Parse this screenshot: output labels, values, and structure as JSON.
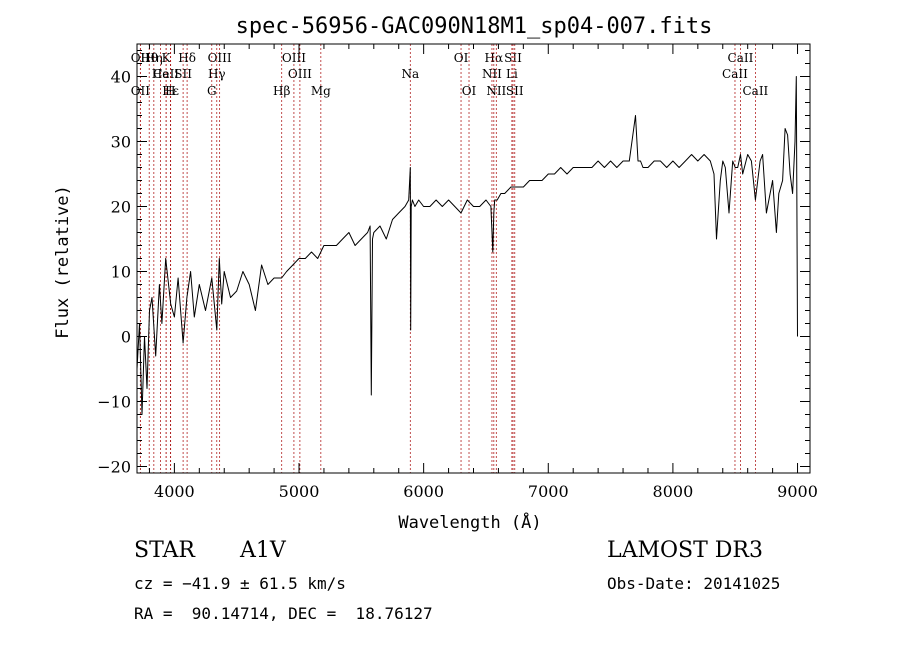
{
  "chart_data": {
    "type": "line",
    "title": "spec-56956-GAC090N18M1_sp04-007.fits",
    "xlabel": "Wavelength (Å)",
    "ylabel": "Flux (relative)",
    "xlim": [
      3700,
      9100
    ],
    "ylim": [
      -21,
      45
    ],
    "xticks": [
      4000,
      5000,
      6000,
      7000,
      8000,
      9000
    ],
    "xtick_labels": [
      "4000",
      "5000",
      "6000",
      "7000",
      "8000",
      "9000"
    ],
    "yticks": [
      -20,
      -10,
      0,
      10,
      20,
      30,
      40
    ],
    "ytick_labels": [
      "−20",
      "−10",
      "0",
      "10",
      "20",
      "30",
      "40"
    ],
    "series": [
      {
        "name": "spectrum",
        "x": [
          3700,
          3720,
          3740,
          3760,
          3780,
          3800,
          3820,
          3850,
          3880,
          3900,
          3930,
          3970,
          4000,
          4030,
          4070,
          4100,
          4130,
          4160,
          4200,
          4250,
          4300,
          4340,
          4360,
          4380,
          4400,
          4450,
          4500,
          4550,
          4600,
          4650,
          4700,
          4750,
          4800,
          4860,
          4900,
          4950,
          5000,
          5050,
          5100,
          5150,
          5200,
          5250,
          5300,
          5350,
          5400,
          5450,
          5500,
          5550,
          5570,
          5580,
          5590,
          5600,
          5650,
          5700,
          5750,
          5800,
          5850,
          5880,
          5893,
          5896,
          5900,
          5910,
          5930,
          5960,
          6000,
          6050,
          6100,
          6150,
          6200,
          6250,
          6300,
          6350,
          6400,
          6450,
          6500,
          6540,
          6555,
          6563,
          6570,
          6590,
          6620,
          6650,
          6700,
          6750,
          6800,
          6850,
          6900,
          6950,
          7000,
          7050,
          7100,
          7150,
          7200,
          7250,
          7300,
          7350,
          7400,
          7450,
          7500,
          7550,
          7600,
          7650,
          7700,
          7720,
          7740,
          7760,
          7800,
          7850,
          7900,
          7950,
          8000,
          8050,
          8100,
          8150,
          8200,
          8250,
          8300,
          8330,
          8350,
          8380,
          8400,
          8420,
          8450,
          8480,
          8500,
          8520,
          8542,
          8560,
          8600,
          8630,
          8662,
          8700,
          8720,
          8750,
          8780,
          8800,
          8830,
          8850,
          8880,
          8900,
          8920,
          8940,
          8960,
          8980,
          8990,
          9000
        ],
        "y": [
          -5,
          2,
          -12,
          0,
          -8,
          4,
          6,
          -3,
          8,
          2,
          12,
          5,
          3,
          9,
          -1,
          6,
          10,
          3,
          8,
          4,
          9,
          1,
          12,
          5,
          10,
          6,
          7,
          10,
          8,
          4,
          11,
          8,
          9,
          9,
          10,
          11,
          12,
          12,
          13,
          12,
          14,
          14,
          14,
          15,
          16,
          14,
          15,
          16,
          17,
          -9,
          15,
          16,
          17,
          15,
          18,
          19,
          20,
          21,
          26,
          1,
          20,
          21,
          20,
          21,
          20,
          20,
          21,
          20,
          21,
          20,
          19,
          21,
          20,
          20,
          21,
          20,
          13,
          19,
          21,
          21,
          22,
          22,
          23,
          23,
          23,
          24,
          24,
          24,
          25,
          25,
          26,
          25,
          26,
          26,
          26,
          26,
          27,
          26,
          27,
          26,
          27,
          27,
          34,
          27,
          27,
          26,
          26,
          27,
          27,
          26,
          27,
          26,
          27,
          28,
          27,
          28,
          27,
          25,
          15,
          24,
          27,
          26,
          19,
          27,
          26,
          26,
          28,
          25,
          28,
          27,
          21,
          27,
          28,
          19,
          22,
          24,
          16,
          22,
          24,
          32,
          31,
          25,
          22,
          30,
          40,
          0
        ]
      }
    ],
    "line_markers": [
      {
        "label": "Hθ",
        "x": 3798,
        "row": 1
      },
      {
        "label": "OII",
        "x": 3727,
        "row": 1
      },
      {
        "label": "Hη",
        "x": 3835,
        "row": 1
      },
      {
        "label": "K",
        "x": 3934,
        "row": 1
      },
      {
        "label": "Hδ",
        "x": 4102,
        "row": 1
      },
      {
        "label": "OIII",
        "x": 4363,
        "row": 1
      },
      {
        "label": "OIII",
        "x": 4959,
        "row": 1
      },
      {
        "label": "OI",
        "x": 6300,
        "row": 1
      },
      {
        "label": "Hα",
        "x": 6563,
        "row": 1
      },
      {
        "label": "SII",
        "x": 6717,
        "row": 1
      },
      {
        "label": "CaII",
        "x": 8542,
        "row": 1
      },
      {
        "label": "CaII",
        "x": 3934,
        "row": 2
      },
      {
        "label": "He",
        "x": 3889,
        "row": 2
      },
      {
        "label": "SII",
        "x": 4070,
        "row": 2
      },
      {
        "label": "Hγ",
        "x": 4340,
        "row": 2
      },
      {
        "label": "OIII",
        "x": 5007,
        "row": 2
      },
      {
        "label": "Na",
        "x": 5893,
        "row": 2
      },
      {
        "label": "NII",
        "x": 6548,
        "row": 2
      },
      {
        "label": "Li",
        "x": 6708,
        "row": 2
      },
      {
        "label": "CaII",
        "x": 8498,
        "row": 2
      },
      {
        "label": "OII",
        "x": 3727,
        "row": 3
      },
      {
        "label": "Hε",
        "x": 3970,
        "row": 3
      },
      {
        "label": "H",
        "x": 3968,
        "row": 3
      },
      {
        "label": "G",
        "x": 4300,
        "row": 3
      },
      {
        "label": "Hβ",
        "x": 4861,
        "row": 3
      },
      {
        "label": "Mg",
        "x": 5175,
        "row": 3
      },
      {
        "label": "OI",
        "x": 6364,
        "row": 3
      },
      {
        "label": "NII",
        "x": 6583,
        "row": 3
      },
      {
        "label": "SII",
        "x": 6731,
        "row": 3
      },
      {
        "label": "CaII",
        "x": 8662,
        "row": 3
      }
    ],
    "grid": false,
    "legend": "none"
  },
  "info": {
    "class": "STAR",
    "subclass": "A1V",
    "survey": "LAMOST DR3",
    "cz": "cz = −41.9 ± 61.5 km/s",
    "obs_date": "Obs-Date: 20141025",
    "coords": "RA =  90.14714, DEC =  18.76127"
  },
  "colors": {
    "marker_line": "#b22222",
    "spectrum": "#000000",
    "axes": "#000000"
  }
}
